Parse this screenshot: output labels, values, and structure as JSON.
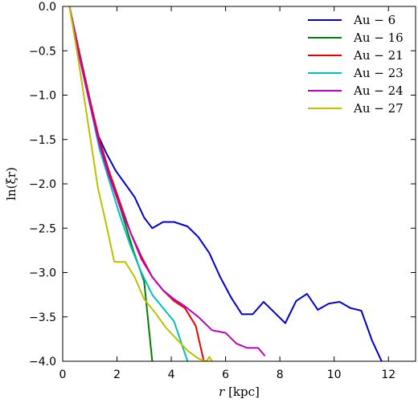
{
  "chart_data": {
    "type": "line",
    "title": "",
    "xlabel_var": "r",
    "xlabel_unit": "[kpc]",
    "ylabel": "ln(ξr)",
    "xlim": [
      0,
      13
    ],
    "ylim": [
      -4.0,
      0.0
    ],
    "xticks": [
      0,
      2,
      4,
      6,
      8,
      10,
      12
    ],
    "xtick_labels": [
      "0",
      "2",
      "4",
      "6",
      "8",
      "10",
      "12"
    ],
    "yticks": [
      0.0,
      -0.5,
      -1.0,
      -1.5,
      -2.0,
      -2.5,
      -3.0,
      -3.5,
      -4.0
    ],
    "ytick_labels": [
      "0.0",
      "−0.5",
      "−1.0",
      "−1.5",
      "−2.0",
      "−2.5",
      "−3.0",
      "−3.5",
      "−4.0"
    ],
    "grid": false,
    "legend_position": "top-right",
    "series": [
      {
        "name": "Au − 6",
        "color": "#0000cc",
        "points": [
          [
            0.25,
            0.0
          ],
          [
            0.55,
            -0.45
          ],
          [
            0.9,
            -0.95
          ],
          [
            1.3,
            -1.45
          ],
          [
            1.6,
            -1.65
          ],
          [
            1.95,
            -1.85
          ],
          [
            2.3,
            -2.0
          ],
          [
            2.65,
            -2.15
          ],
          [
            3.0,
            -2.38
          ],
          [
            3.3,
            -2.5
          ],
          [
            3.7,
            -2.43
          ],
          [
            4.1,
            -2.43
          ],
          [
            4.6,
            -2.48
          ],
          [
            5.0,
            -2.6
          ],
          [
            5.4,
            -2.78
          ],
          [
            5.8,
            -3.05
          ],
          [
            6.2,
            -3.28
          ],
          [
            6.6,
            -3.47
          ],
          [
            7.0,
            -3.47
          ],
          [
            7.4,
            -3.33
          ],
          [
            7.8,
            -3.45
          ],
          [
            8.2,
            -3.57
          ],
          [
            8.6,
            -3.32
          ],
          [
            9.0,
            -3.24
          ],
          [
            9.4,
            -3.42
          ],
          [
            9.8,
            -3.35
          ],
          [
            10.2,
            -3.33
          ],
          [
            10.6,
            -3.4
          ],
          [
            11.0,
            -3.43
          ],
          [
            11.4,
            -3.77
          ],
          [
            11.75,
            -4.0
          ]
        ]
      },
      {
        "name": "Au − 16",
        "color": "#007f00",
        "points": [
          [
            0.25,
            0.0
          ],
          [
            0.6,
            -0.5
          ],
          [
            1.0,
            -1.05
          ],
          [
            1.4,
            -1.6
          ],
          [
            1.8,
            -1.95
          ],
          [
            2.2,
            -2.35
          ],
          [
            2.6,
            -2.75
          ],
          [
            3.0,
            -3.1
          ],
          [
            3.3,
            -4.0
          ]
        ]
      },
      {
        "name": "Au − 21",
        "color": "#ee0000",
        "points": [
          [
            0.25,
            0.0
          ],
          [
            0.6,
            -0.5
          ],
          [
            1.0,
            -1.05
          ],
          [
            1.35,
            -1.5
          ],
          [
            1.7,
            -1.85
          ],
          [
            2.1,
            -2.2
          ],
          [
            2.5,
            -2.55
          ],
          [
            2.9,
            -2.82
          ],
          [
            3.3,
            -3.05
          ],
          [
            3.7,
            -3.2
          ],
          [
            4.1,
            -3.32
          ],
          [
            4.5,
            -3.4
          ],
          [
            4.9,
            -3.6
          ],
          [
            5.2,
            -4.0
          ]
        ]
      },
      {
        "name": "Au − 23",
        "color": "#00bfbf",
        "points": [
          [
            0.25,
            0.0
          ],
          [
            0.6,
            -0.55
          ],
          [
            1.0,
            -1.1
          ],
          [
            1.35,
            -1.6
          ],
          [
            1.7,
            -1.95
          ],
          [
            2.1,
            -2.35
          ],
          [
            2.5,
            -2.7
          ],
          [
            2.9,
            -3.0
          ],
          [
            3.3,
            -3.25
          ],
          [
            3.7,
            -3.4
          ],
          [
            4.1,
            -3.55
          ],
          [
            4.6,
            -4.0
          ]
        ]
      },
      {
        "name": "Au − 24",
        "color": "#bf00bf",
        "points": [
          [
            0.25,
            0.0
          ],
          [
            0.6,
            -0.55
          ],
          [
            1.0,
            -1.1
          ],
          [
            1.35,
            -1.55
          ],
          [
            1.7,
            -1.9
          ],
          [
            2.1,
            -2.25
          ],
          [
            2.5,
            -2.55
          ],
          [
            2.9,
            -2.85
          ],
          [
            3.3,
            -3.05
          ],
          [
            3.7,
            -3.2
          ],
          [
            4.1,
            -3.3
          ],
          [
            4.5,
            -3.38
          ],
          [
            5.0,
            -3.5
          ],
          [
            5.5,
            -3.65
          ],
          [
            6.0,
            -3.68
          ],
          [
            6.4,
            -3.8
          ],
          [
            6.8,
            -3.85
          ],
          [
            7.2,
            -3.85
          ],
          [
            7.45,
            -3.94
          ]
        ]
      },
      {
        "name": "Au − 27",
        "color": "#bfbf00",
        "points": [
          [
            0.25,
            0.0
          ],
          [
            0.6,
            -0.65
          ],
          [
            0.95,
            -1.35
          ],
          [
            1.3,
            -2.05
          ],
          [
            1.6,
            -2.45
          ],
          [
            1.9,
            -2.88
          ],
          [
            2.3,
            -2.88
          ],
          [
            2.65,
            -3.05
          ],
          [
            3.0,
            -3.3
          ],
          [
            3.4,
            -3.45
          ],
          [
            3.8,
            -3.62
          ],
          [
            4.2,
            -3.75
          ],
          [
            4.6,
            -3.88
          ],
          [
            5.0,
            -3.97
          ],
          [
            5.3,
            -4.0
          ],
          [
            5.4,
            -3.95
          ],
          [
            5.5,
            -4.0
          ]
        ]
      }
    ]
  }
}
